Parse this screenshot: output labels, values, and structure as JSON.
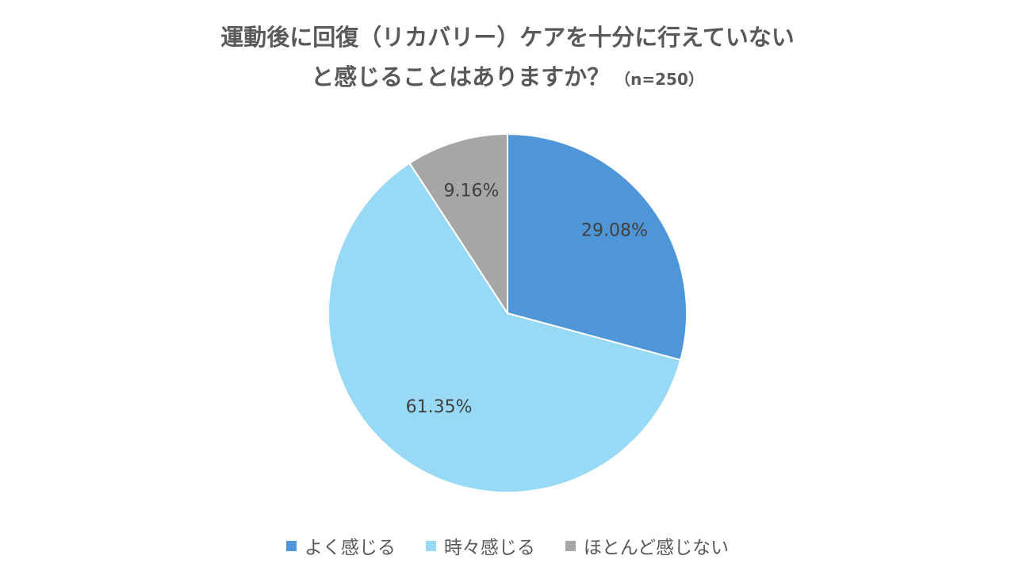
{
  "chart_data": {
    "type": "pie",
    "title_line1": "運動後に回復（リカバリー）ケアを十分に行えていない",
    "title_line2": "と感じることはありますか？",
    "sample_note": "（n=250）",
    "slices": [
      {
        "label": "よく感じる",
        "value": 29.08,
        "display": "29.08%",
        "color": "#4e96d8"
      },
      {
        "label": "時々感じる",
        "value": 61.35,
        "display": "61.35%",
        "color": "#98d9f5"
      },
      {
        "label": "ほとんど感じない",
        "value": 9.16,
        "display": "9.16%",
        "color": "#a6a6a6"
      }
    ],
    "start": "12 o'clock",
    "direction": "clockwise",
    "legend_position": "bottom"
  }
}
